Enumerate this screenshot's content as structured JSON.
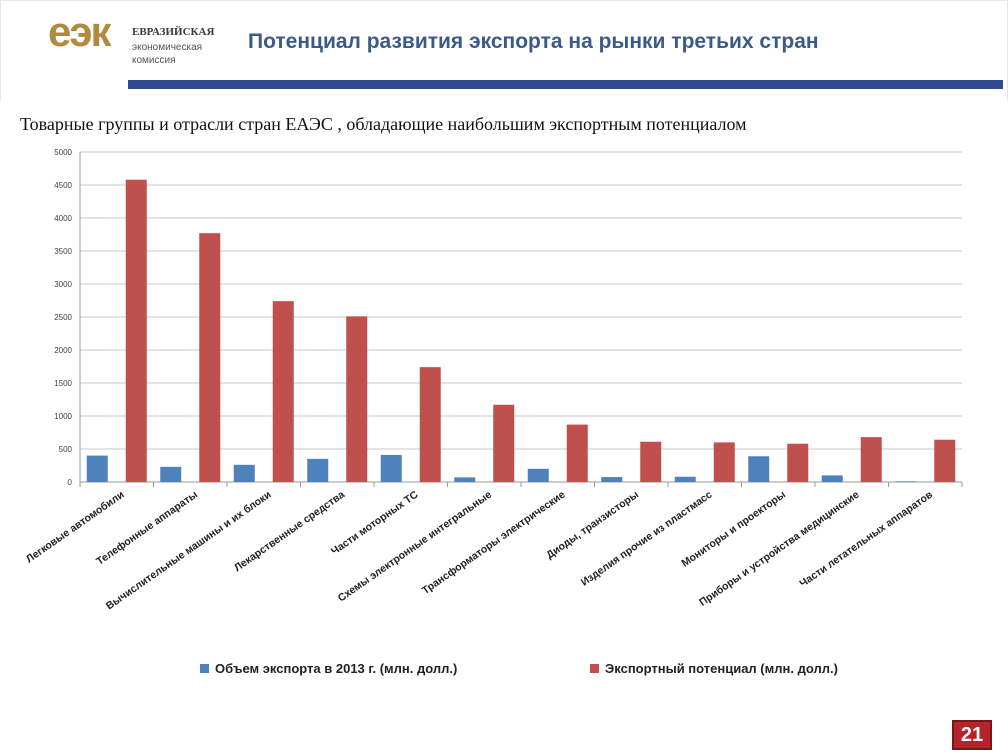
{
  "header": {
    "logo_mark": "еэк",
    "logo_line1": "ЕВРАЗИЙСКАЯ",
    "logo_line2": "экономическая",
    "logo_line3": "комиссия",
    "page_title": "Потенциал развития экспорта на рынки третьих стран"
  },
  "chart_data": {
    "type": "bar",
    "title": "Товарные группы и отрасли стран ЕАЭС , обладающие наибольшим экспортным потенциалом",
    "xlabel": "",
    "ylabel": "",
    "ylim": [
      0,
      5000
    ],
    "yticks": [
      "0",
      "500",
      "1000",
      "1500",
      "2000",
      "2500",
      "3000",
      "3500",
      "4000",
      "4500",
      "5000"
    ],
    "categories": [
      "Легковые автомобили",
      "Телефонные аппараты",
      "Вычислительные машины и их блоки",
      "Лекарственные средства",
      "Части моторных ТС",
      "Схемы электронные интегральные",
      "Трансформаторы электрические",
      "Диоды, транзисторы",
      "Изделия прочие из пластмасс",
      "Мониторы и проекторы",
      "Приборы и устройства медицинские",
      "Части летательных аппаратов"
    ],
    "series": [
      {
        "name": "Объем экспорта в 2013 г. (млн. долл.)",
        "color": "#4f81bd",
        "values": [
          400,
          230,
          260,
          350,
          410,
          70,
          200,
          75,
          80,
          390,
          100,
          10
        ]
      },
      {
        "name": "Экспортный потенциал (млн. долл.)",
        "color": "#c0504d",
        "values": [
          4580,
          3770,
          2740,
          2510,
          1740,
          1170,
          870,
          610,
          600,
          580,
          680,
          640
        ]
      }
    ],
    "legend_position": "bottom"
  },
  "footer": {
    "page_number": "21"
  }
}
